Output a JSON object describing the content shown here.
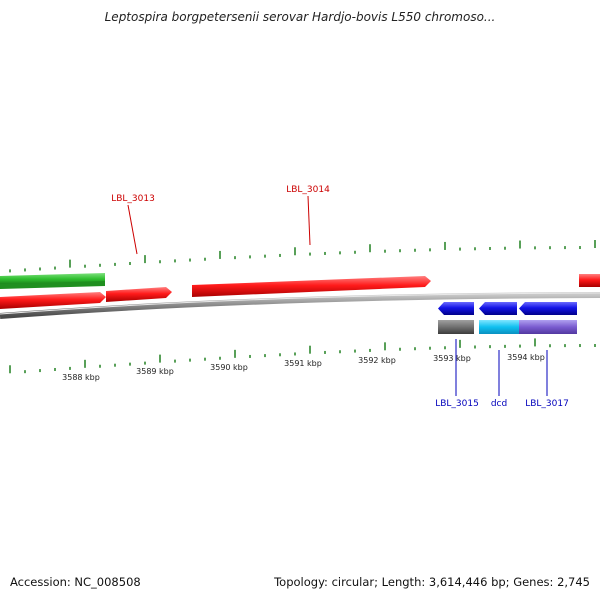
{
  "title": "Leptospira borgpetersenii serovar Hardjo-bovis L550 chromoso...",
  "footer": {
    "accession": "Accession: NC_008508",
    "topology": "Topology: circular; Length: 3,614,446 bp; Genes: 2,745"
  },
  "colors": {
    "forward_gene": "#ff2020",
    "reverse_gene": "#2020e0",
    "forward_label": "#cc0000",
    "reverse_label": "#0000bb",
    "backbone": "#888888",
    "gc_tick": "#208020",
    "green_bar": "#30c030",
    "cyan_bar": "#20c0f0",
    "purple_bar": "#8060d0",
    "gray_bar": "#707070"
  },
  "scale_labels": [
    "3588 kbp",
    "3589 kbp",
    "3590 kbp",
    "3591 kbp",
    "3592 kbp",
    "3593 kbp",
    "3594 kbp"
  ],
  "gene_labels": {
    "forward": [
      "LBL_3013",
      "LBL_3014"
    ],
    "reverse": [
      "LBL_3015",
      "dcd",
      "LBL_3017"
    ]
  }
}
